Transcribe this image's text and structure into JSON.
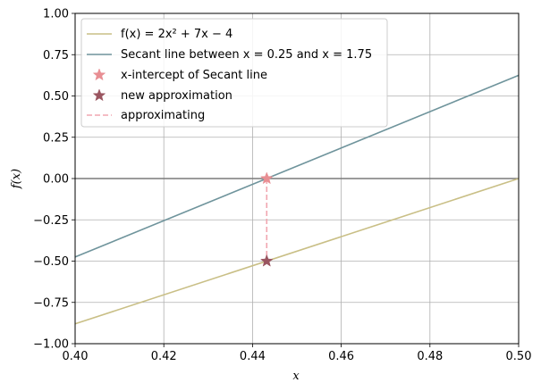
{
  "chart_data": {
    "type": "line",
    "title": "",
    "xlabel": "x",
    "ylabel": "f(x)",
    "xlim": [
      0.4,
      0.5
    ],
    "ylim": [
      -1.0,
      1.0
    ],
    "grid": true,
    "legend_position": "top-left",
    "x_ticks": [
      "0.40",
      "0.42",
      "0.44",
      "0.46",
      "0.48",
      "0.50"
    ],
    "y_ticks": [
      "1.00",
      "0.75",
      "0.50",
      "0.25",
      "0.00",
      "−0.25",
      "−0.50",
      "−0.75",
      "−1.00"
    ],
    "colors": {
      "function": "#c9bf86",
      "secant": "#6f949c",
      "intercept": "#e88e93",
      "approximation": "#9a5560",
      "approximating": "#f1a6b0",
      "zero_line": "#7a7a7a"
    },
    "series": [
      {
        "name": "f(x) = 2x² + 7x − 4",
        "kind": "line",
        "x": [
          0.4,
          0.5
        ],
        "y": [
          -0.88,
          0.0
        ]
      },
      {
        "name": "Secant line between x = 0.25 and x = 1.75",
        "kind": "line",
        "x": [
          0.4,
          0.5
        ],
        "y": [
          -0.475,
          0.625
        ]
      },
      {
        "name": "x-intercept of Secant line",
        "kind": "marker",
        "marker": "star",
        "x": [
          0.4432
        ],
        "y": [
          0.0
        ]
      },
      {
        "name": "new approximation",
        "kind": "marker",
        "marker": "star",
        "x": [
          0.4432
        ],
        "y": [
          -0.5
        ]
      },
      {
        "name": "approximating",
        "kind": "dashed-line",
        "x": [
          0.4432,
          0.4432
        ],
        "y": [
          0.0,
          -0.5
        ]
      }
    ],
    "legend": {
      "function_text": "f(x) = 2x² + 7x − 4",
      "secant_text": "Secant line between x = 0.25 and x = 1.75",
      "intercept_text": "x-intercept of Secant line",
      "approx_text": "new approximation",
      "approximating_text": "approximating"
    }
  }
}
